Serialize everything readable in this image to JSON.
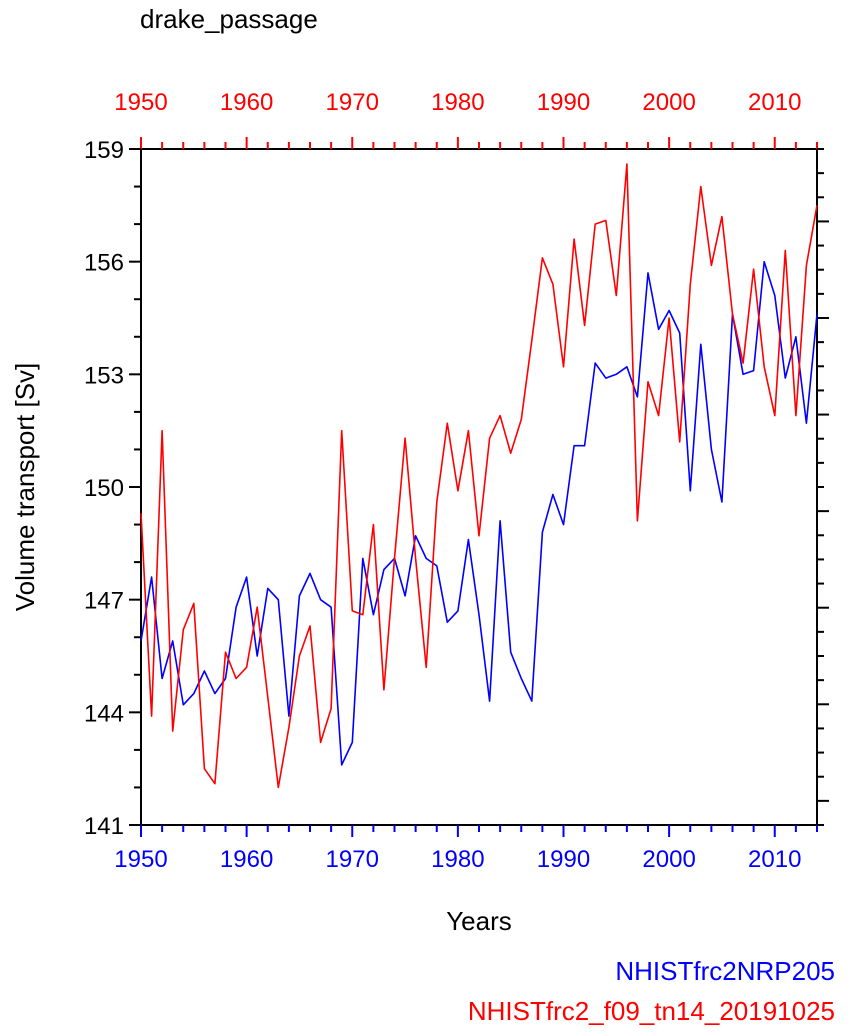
{
  "chart_data": {
    "type": "line",
    "title": "drake_passage",
    "xlabel": "Years",
    "ylabel": "Volume transport [Sv]",
    "xlim": [
      1950,
      2014
    ],
    "ylim": [
      141,
      159
    ],
    "x_ticks": [
      1950,
      1960,
      1970,
      1980,
      1990,
      2000,
      2010
    ],
    "y_ticks": [
      141,
      144,
      147,
      150,
      153,
      156,
      159
    ],
    "x_ticklabels": [
      "1950",
      "1960",
      "1970",
      "1980",
      "1990",
      "2000",
      "2010"
    ],
    "y_ticklabels": [
      "141",
      "144",
      "147",
      "150",
      "153",
      "156",
      "159"
    ],
    "x": [
      1950,
      1951,
      1952,
      1953,
      1954,
      1955,
      1956,
      1957,
      1958,
      1959,
      1960,
      1961,
      1962,
      1963,
      1964,
      1965,
      1966,
      1967,
      1968,
      1969,
      1970,
      1971,
      1972,
      1973,
      1974,
      1975,
      1976,
      1977,
      1978,
      1979,
      1980,
      1981,
      1982,
      1983,
      1984,
      1985,
      1986,
      1987,
      1988,
      1989,
      1990,
      1991,
      1992,
      1993,
      1994,
      1995,
      1996,
      1997,
      1998,
      1999,
      2000,
      2001,
      2002,
      2003,
      2004,
      2005,
      2006,
      2007,
      2008,
      2009,
      2010,
      2011,
      2012,
      2013,
      2014
    ],
    "series": [
      {
        "name": "NHISTfrc2NRP205",
        "color": "#0000ff",
        "values": [
          145.9,
          147.6,
          144.9,
          145.9,
          144.2,
          144.5,
          145.1,
          144.5,
          144.9,
          146.8,
          147.6,
          145.5,
          147.3,
          147.0,
          143.9,
          147.1,
          147.7,
          147.0,
          146.8,
          142.6,
          143.2,
          148.1,
          146.6,
          147.8,
          148.1,
          147.1,
          148.7,
          148.1,
          147.9,
          146.4,
          146.7,
          148.6,
          146.6,
          144.3,
          149.1,
          145.6,
          144.9,
          144.3,
          148.8,
          149.8,
          149.0,
          151.1,
          151.1,
          153.3,
          152.9,
          153.0,
          153.2,
          152.4,
          155.7,
          154.2,
          154.7,
          154.1,
          149.9,
          153.8,
          151.0,
          149.6,
          154.6,
          153.0,
          153.1,
          156.0,
          155.1,
          152.9,
          154.0,
          151.7,
          154.6
        ]
      },
      {
        "name": "NHISTfrc2_f09_tn14_20191025",
        "color": "#ff0000",
        "values": [
          149.3,
          143.9,
          151.5,
          143.5,
          146.2,
          146.9,
          142.5,
          142.1,
          145.6,
          144.9,
          145.2,
          146.8,
          144.4,
          142.0,
          143.6,
          145.5,
          146.3,
          143.2,
          144.1,
          151.5,
          146.7,
          146.6,
          149.0,
          144.6,
          148.1,
          151.3,
          148.1,
          145.2,
          149.6,
          151.7,
          149.9,
          151.5,
          148.7,
          151.3,
          151.9,
          150.9,
          151.8,
          153.9,
          156.1,
          155.4,
          153.2,
          156.6,
          154.3,
          157.0,
          157.1,
          155.1,
          158.6,
          149.1,
          152.8,
          151.9,
          154.5,
          151.2,
          155.4,
          158.0,
          155.9,
          157.2,
          154.6,
          153.3,
          155.8,
          153.2,
          151.9,
          156.3,
          151.9,
          155.9,
          157.5
        ]
      }
    ],
    "legend": [
      "NHISTfrc2NRP205",
      "NHISTfrc2_f09_tn14_20191025"
    ],
    "legend_position": "bottom-right",
    "grid": false,
    "top_axis_color": "#ff0000",
    "bottom_axis_color": "#0000ff"
  }
}
